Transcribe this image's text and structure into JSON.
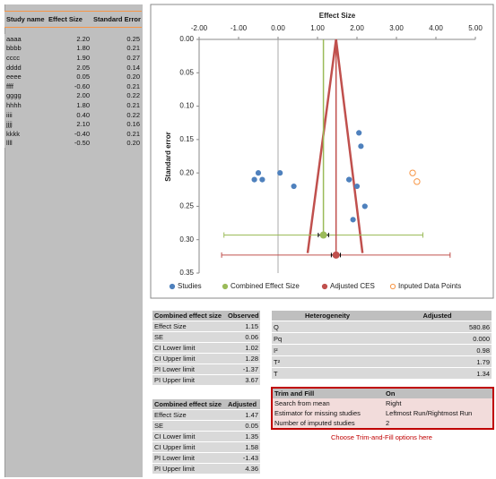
{
  "study_table": {
    "header": [
      "Study name",
      "Effect Size",
      "Standard Error"
    ],
    "rows": [
      [
        "aaaa",
        "2.20",
        "0.25"
      ],
      [
        "bbbb",
        "1.80",
        "0.21"
      ],
      [
        "cccc",
        "1.90",
        "0.27"
      ],
      [
        "dddd",
        "2.05",
        "0.14"
      ],
      [
        "eeee",
        "0.05",
        "0.20"
      ],
      [
        "ffff",
        "-0.60",
        "0.21"
      ],
      [
        "gggg",
        "2.00",
        "0.22"
      ],
      [
        "hhhh",
        "1.80",
        "0.21"
      ],
      [
        "iiii",
        "0.40",
        "0.22"
      ],
      [
        "jjjj",
        "2.10",
        "0.16"
      ],
      [
        "kkkk",
        "-0.40",
        "0.21"
      ],
      [
        "llll",
        "-0.50",
        "0.20"
      ]
    ]
  },
  "observed_table": {
    "header": [
      "Combined effect size",
      "Observed"
    ],
    "rows": [
      [
        "Effect Size",
        "1.15"
      ],
      [
        "SE",
        "0.06"
      ],
      [
        "CI Lower limit",
        "1.02"
      ],
      [
        "CI Upper limit",
        "1.28"
      ],
      [
        "PI Lower limit",
        "-1.37"
      ],
      [
        "PI Upper limit",
        "3.67"
      ]
    ]
  },
  "adjusted_table": {
    "header": [
      "Combined effect size",
      "Adjusted"
    ],
    "rows": [
      [
        "Effect Size",
        "1.47"
      ],
      [
        "SE",
        "0.05"
      ],
      [
        "CI Lower limit",
        "1.35"
      ],
      [
        "CI Upper limit",
        "1.58"
      ],
      [
        "PI Lower limit",
        "-1.43"
      ],
      [
        "PI Upper limit",
        "4.36"
      ]
    ]
  },
  "heterogeneity_table": {
    "header": [
      "Heterogeneity",
      "Adjusted"
    ],
    "rows": [
      [
        "Q",
        "580.86"
      ],
      [
        "Pq",
        "0.000"
      ],
      [
        "I²",
        "0.98"
      ],
      [
        "T²",
        "1.79"
      ],
      [
        "T",
        "1.34"
      ]
    ]
  },
  "trim_fill_table": {
    "header": [
      "Trim and Fill",
      "On"
    ],
    "rows": [
      [
        "Search from mean",
        "Right"
      ],
      [
        "Estimator for missing studies",
        "Leftmost Run/Rightmost Run"
      ],
      [
        "Number of imputed studies",
        "2"
      ]
    ]
  },
  "trim_fill_hint": "Choose Trim-and-Fill options here",
  "chart_data": {
    "type": "scatter",
    "x_label": "Effect Size",
    "y_label": "Standard error",
    "xlim": [
      -2,
      5
    ],
    "ylim": [
      0,
      0.35
    ],
    "y_inverted": true,
    "x_axis_position": "top",
    "xticks": [
      {
        "value": -2,
        "label": "-2.00"
      },
      {
        "value": -1,
        "label": "-1.00"
      },
      {
        "value": 0,
        "label": "0.00"
      },
      {
        "value": 1,
        "label": "1.00"
      },
      {
        "value": 2,
        "label": "2.00"
      },
      {
        "value": 3,
        "label": "3.00"
      },
      {
        "value": 4,
        "label": "4.00"
      },
      {
        "value": 5,
        "label": "5.00"
      }
    ],
    "yticks": [
      {
        "value": 0,
        "label": "0.00"
      },
      {
        "value": 0.05,
        "label": "0.05"
      },
      {
        "value": 0.1,
        "label": "0.10"
      },
      {
        "value": 0.15,
        "label": "0.15"
      },
      {
        "value": 0.2,
        "label": "0.20"
      },
      {
        "value": 0.25,
        "label": "0.25"
      },
      {
        "value": 0.3,
        "label": "0.30"
      },
      {
        "value": 0.35,
        "label": "0.35"
      }
    ],
    "legend": "bottom",
    "series": [
      {
        "name": "Studies",
        "color": "#4f81bd",
        "marker": "filled",
        "x": [
          2.2,
          1.8,
          1.9,
          2.05,
          0.05,
          -0.6,
          2.0,
          1.8,
          0.4,
          2.1,
          -0.4,
          -0.5
        ],
        "y": [
          0.25,
          0.21,
          0.27,
          0.14,
          0.2,
          0.21,
          0.22,
          0.21,
          0.22,
          0.16,
          0.21,
          0.2
        ]
      },
      {
        "name": "Combined Effect Size",
        "color": "#9bbb59",
        "marker": "filled",
        "x": [
          1.15
        ],
        "y": [
          0.293
        ],
        "pi": [
          -1.37,
          3.67
        ],
        "ci": [
          1.02,
          1.28
        ]
      },
      {
        "name": "Adjusted CES",
        "color": "#c0504d",
        "marker": "filled",
        "x": [
          1.47
        ],
        "y": [
          0.323
        ],
        "pi": [
          -1.43,
          4.36
        ],
        "ci": [
          1.35,
          1.58
        ]
      },
      {
        "name": "Inputed Data Points",
        "color": "#f79646",
        "marker": "hollow",
        "x": [
          3.41,
          3.52
        ],
        "y": [
          0.2,
          0.213
        ]
      }
    ],
    "funnel": {
      "color": "#c0504d",
      "x": [
        0.75,
        1.47,
        2.14
      ],
      "y": [
        0.32,
        0,
        0.32
      ]
    }
  }
}
